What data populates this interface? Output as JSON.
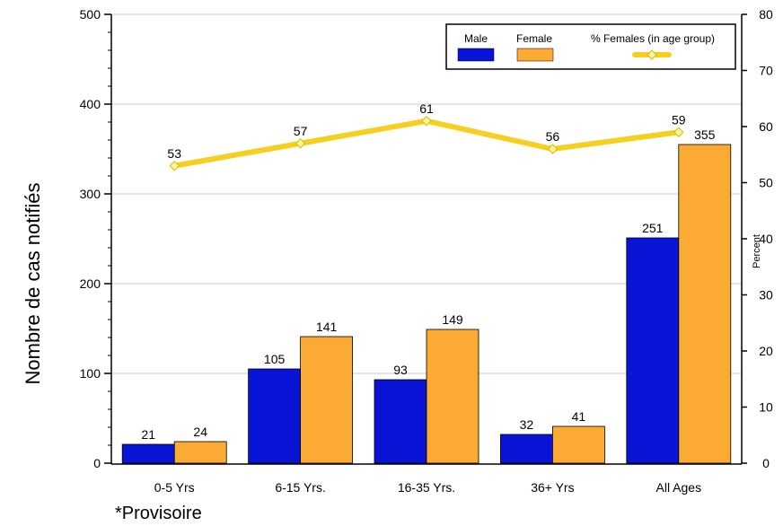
{
  "chart_data": {
    "type": "bar",
    "categories": [
      "0-5 Yrs",
      "6-15 Yrs.",
      "16-35 Yrs.",
      "36+ Yrs",
      "All Ages"
    ],
    "series": [
      {
        "name": "Male",
        "values": [
          21,
          105,
          93,
          32,
          251
        ],
        "color": "#0a14d6"
      },
      {
        "name": "Female",
        "values": [
          24,
          141,
          149,
          41,
          355
        ],
        "color": "#fbab33"
      }
    ],
    "line_series": {
      "name": "% Females (in age group)",
      "values": [
        53,
        57,
        61,
        56,
        59
      ],
      "color": "#f5d020"
    },
    "ylabel": "Nombre de cas notifiés",
    "y2label": "Percent",
    "ylim": [
      0,
      500
    ],
    "y_ticks": [
      0,
      100,
      200,
      300,
      400,
      500
    ],
    "y2lim": [
      0,
      80
    ],
    "y2_ticks": [
      0,
      10,
      20,
      30,
      40,
      50,
      60,
      70,
      80
    ],
    "grid": true,
    "legend_position": "top-right",
    "footnote": "*Provisoire"
  }
}
